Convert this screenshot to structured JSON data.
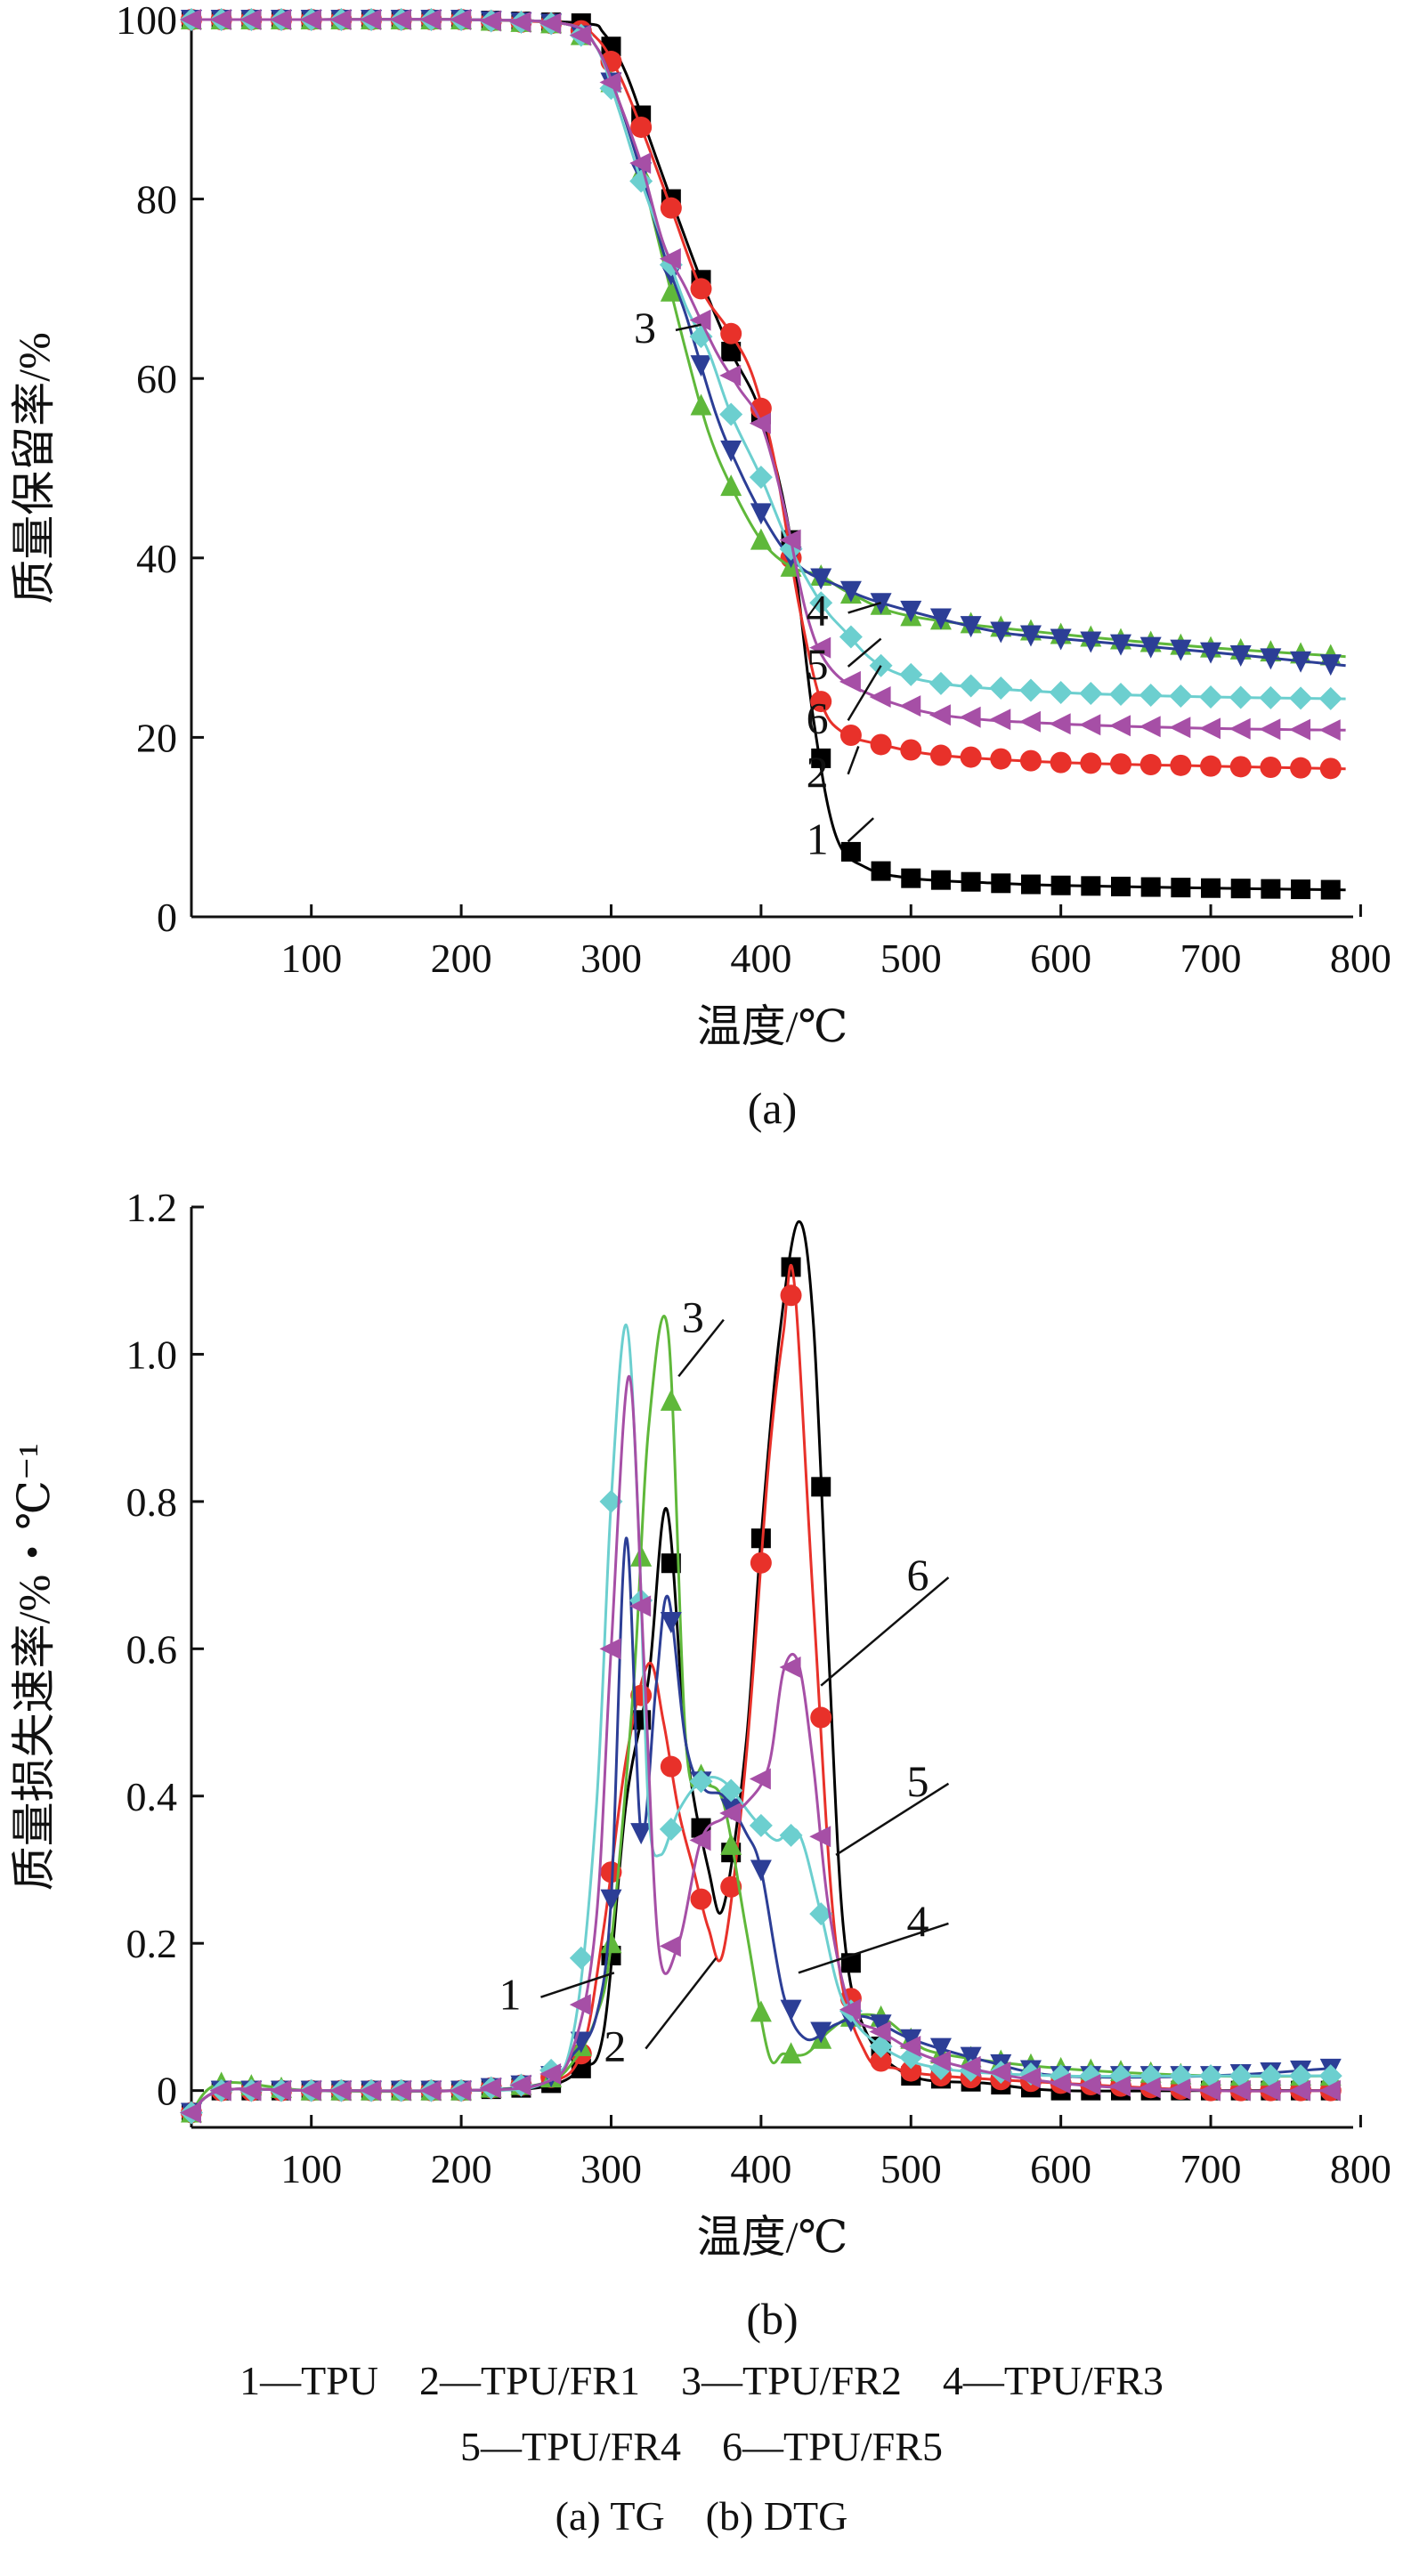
{
  "chart_data": [
    {
      "type": "line",
      "panel_label": "(a)",
      "ylabel": "质量保留率/%",
      "xlabel": "温度/℃",
      "xlim": [
        20,
        795
      ],
      "ylim": [
        0,
        100
      ],
      "xticks": [
        100,
        200,
        300,
        400,
        500,
        600,
        700,
        800
      ],
      "yticks": [
        0,
        20,
        40,
        60,
        80,
        100
      ],
      "series": [
        {
          "name": "1",
          "color": "#000000",
          "marker": "square",
          "x": [
            20,
            100,
            200,
            280,
            295,
            310,
            325,
            340,
            360,
            380,
            400,
            420,
            435,
            450,
            470,
            500,
            550,
            600,
            700,
            790
          ],
          "y": [
            100,
            100,
            100,
            99.6,
            98.5,
            94,
            87,
            80,
            71,
            63,
            56,
            42,
            22,
            9,
            5.5,
            4.3,
            3.8,
            3.5,
            3.2,
            3
          ]
        },
        {
          "name": "2",
          "color": "#e8312a",
          "marker": "circle",
          "x": [
            20,
            100,
            200,
            270,
            290,
            305,
            320,
            340,
            360,
            380,
            395,
            410,
            425,
            440,
            455,
            480,
            520,
            600,
            700,
            790
          ],
          "y": [
            100,
            100,
            100,
            99.5,
            98,
            94,
            88,
            79,
            70,
            65,
            60,
            50,
            35,
            24,
            20.5,
            19.2,
            18,
            17.2,
            16.8,
            16.5
          ]
        },
        {
          "name": "3",
          "color": "#5fb83a",
          "marker": "triangle-up",
          "x": [
            20,
            100,
            200,
            270,
            290,
            305,
            320,
            335,
            350,
            365,
            380,
            400,
            420,
            440,
            460,
            500,
            600,
            700,
            790
          ],
          "y": [
            100,
            100,
            100,
            99.5,
            97,
            91,
            83,
            73,
            63,
            54,
            48,
            42,
            39,
            38,
            36,
            33.5,
            31.5,
            30,
            29
          ]
        },
        {
          "name": "4",
          "color": "#2c3e96",
          "marker": "triangle-down",
          "x": [
            20,
            100,
            200,
            270,
            290,
            305,
            320,
            335,
            350,
            370,
            385,
            400,
            415,
            430,
            450,
            480,
            550,
            600,
            700,
            790
          ],
          "y": [
            100,
            100,
            100,
            99.5,
            97,
            91,
            83,
            74,
            67,
            56,
            50,
            45,
            41,
            38.5,
            37,
            35,
            32,
            31,
            29.5,
            28
          ]
        },
        {
          "name": "5",
          "color": "#6ccfcf",
          "marker": "diamond",
          "x": [
            20,
            100,
            200,
            270,
            290,
            305,
            320,
            335,
            350,
            365,
            380,
            400,
            420,
            440,
            455,
            480,
            520,
            600,
            700,
            790
          ],
          "y": [
            100,
            100,
            100,
            99.5,
            97,
            90,
            82,
            75,
            68,
            63,
            56,
            49,
            41,
            35,
            32,
            28,
            26,
            25,
            24.5,
            24.3
          ]
        },
        {
          "name": "6",
          "color": "#a64fa6",
          "marker": "triangle-left",
          "x": [
            20,
            100,
            200,
            270,
            290,
            305,
            320,
            335,
            350,
            370,
            385,
            400,
            415,
            430,
            445,
            470,
            520,
            600,
            700,
            790
          ],
          "y": [
            100,
            100,
            100,
            99.5,
            97,
            91,
            84,
            75,
            70,
            63,
            59,
            55,
            46,
            34,
            28,
            25,
            22.5,
            21.5,
            21,
            20.8
          ]
        }
      ],
      "annotations": [
        {
          "text": "3",
          "label_x": 330,
          "label_y": 64,
          "point_x": 360,
          "point_y": 66
        },
        {
          "text": "4",
          "label_x": 445,
          "label_y": 32.5,
          "point_x": 480,
          "point_y": 35
        },
        {
          "text": "5",
          "label_x": 445,
          "label_y": 26.5,
          "point_x": 480,
          "point_y": 31
        },
        {
          "text": "6",
          "label_x": 445,
          "label_y": 20.5,
          "point_x": 480,
          "point_y": 28
        },
        {
          "text": "2",
          "label_x": 445,
          "label_y": 14.5,
          "point_x": 465,
          "point_y": 19
        },
        {
          "text": "1",
          "label_x": 445,
          "label_y": 7,
          "point_x": 475,
          "point_y": 11
        }
      ]
    },
    {
      "type": "line",
      "panel_label": "(b)",
      "ylabel": "质量损失速率/%・℃⁻¹",
      "xlabel": "温度/℃",
      "xlim": [
        20,
        795
      ],
      "ylim": [
        -0.05,
        1.2
      ],
      "xticks": [
        100,
        200,
        300,
        400,
        500,
        600,
        700,
        800
      ],
      "yticks": [
        0,
        0.2,
        0.4,
        0.6,
        0.8,
        1.0,
        1.2
      ],
      "ytick_labels": [
        "0",
        "0.2",
        "0.4",
        "0.6",
        "0.8",
        "1.0",
        "1.2"
      ],
      "series": [
        {
          "name": "1",
          "color": "#000000",
          "marker": "square",
          "x": [
            20,
            40,
            100,
            200,
            255,
            280,
            295,
            310,
            325,
            337,
            350,
            365,
            375,
            390,
            400,
            412,
            425,
            435,
            445,
            455,
            470,
            500,
            550,
            600,
            700,
            780
          ],
          "y": [
            -0.03,
            0,
            0,
            0,
            0.005,
            0.03,
            0.08,
            0.39,
            0.56,
            0.79,
            0.47,
            0.3,
            0.25,
            0.47,
            0.75,
            1.02,
            1.18,
            1.04,
            0.6,
            0.22,
            0.08,
            0.02,
            0.01,
            0,
            0,
            0
          ]
        },
        {
          "name": "2",
          "color": "#e8312a",
          "marker": "circle",
          "x": [
            20,
            40,
            100,
            200,
            255,
            280,
            295,
            310,
            325,
            335,
            345,
            355,
            365,
            375,
            390,
            405,
            415,
            422,
            435,
            450,
            470,
            490,
            520,
            600,
            700,
            780
          ],
          "y": [
            -0.03,
            0,
            0,
            0,
            0.01,
            0.05,
            0.22,
            0.45,
            0.58,
            0.5,
            0.38,
            0.3,
            0.22,
            0.19,
            0.45,
            0.85,
            1.03,
            1.1,
            0.66,
            0.2,
            0.05,
            0.03,
            0.02,
            0.01,
            0,
            0
          ]
        },
        {
          "name": "3",
          "color": "#5fb83a",
          "marker": "triangle-up",
          "x": [
            20,
            40,
            100,
            200,
            255,
            275,
            290,
            300,
            315,
            325,
            338,
            350,
            362,
            375,
            390,
            405,
            415,
            430,
            445,
            460,
            480,
            500,
            520,
            600,
            700,
            780
          ],
          "y": [
            -0.03,
            0.01,
            0,
            0,
            0.01,
            0.04,
            0.1,
            0.2,
            0.55,
            0.9,
            1.03,
            0.47,
            0.42,
            0.39,
            0.22,
            0.05,
            0.05,
            0.05,
            0.08,
            0.1,
            0.1,
            0.07,
            0.05,
            0.03,
            0.02,
            0.02
          ]
        },
        {
          "name": "4",
          "color": "#2c3e96",
          "marker": "triangle-down",
          "x": [
            20,
            40,
            100,
            200,
            255,
            275,
            290,
            300,
            310,
            320,
            330,
            338,
            350,
            362,
            375,
            390,
            400,
            415,
            430,
            450,
            470,
            500,
            550,
            600,
            700,
            780
          ],
          "y": [
            -0.03,
            0,
            0,
            0,
            0.01,
            0.05,
            0.1,
            0.26,
            0.75,
            0.35,
            0.55,
            0.67,
            0.47,
            0.41,
            0.4,
            0.35,
            0.3,
            0.13,
            0.07,
            0.09,
            0.1,
            0.07,
            0.04,
            0.02,
            0.02,
            0.03
          ]
        },
        {
          "name": "5",
          "color": "#6ccfcf",
          "marker": "diamond",
          "x": [
            20,
            40,
            100,
            200,
            255,
            275,
            290,
            300,
            310,
            318,
            325,
            333,
            345,
            360,
            375,
            395,
            410,
            425,
            440,
            455,
            480,
            520,
            600,
            700,
            780
          ],
          "y": [
            -0.03,
            0,
            0,
            0,
            0.01,
            0.08,
            0.38,
            0.8,
            1.04,
            0.78,
            0.38,
            0.32,
            0.38,
            0.42,
            0.42,
            0.37,
            0.34,
            0.35,
            0.24,
            0.12,
            0.06,
            0.03,
            0.02,
            0.02,
            0.02
          ]
        },
        {
          "name": "6",
          "color": "#a64fa6",
          "marker": "triangle-left",
          "x": [
            20,
            40,
            100,
            200,
            255,
            275,
            290,
            300,
            312,
            322,
            332,
            345,
            360,
            375,
            390,
            405,
            415,
            425,
            435,
            445,
            460,
            480,
            520,
            600,
            700,
            780
          ],
          "y": [
            -0.03,
            0,
            0,
            0,
            0.01,
            0.06,
            0.23,
            0.6,
            0.97,
            0.58,
            0.19,
            0.2,
            0.34,
            0.37,
            0.39,
            0.44,
            0.57,
            0.58,
            0.44,
            0.25,
            0.11,
            0.08,
            0.04,
            0.01,
            0,
            0
          ]
        }
      ],
      "annotations": [
        {
          "text": "3",
          "label_x": 362,
          "label_y": 1.03,
          "point_x": 345,
          "point_y": 0.97
        },
        {
          "text": "6",
          "label_x": 512,
          "label_y": 0.68,
          "point_x": 440,
          "point_y": 0.55
        },
        {
          "text": "5",
          "label_x": 512,
          "label_y": 0.4,
          "point_x": 450,
          "point_y": 0.32
        },
        {
          "text": "4",
          "label_x": 512,
          "label_y": 0.21,
          "point_x": 425,
          "point_y": 0.16
        },
        {
          "text": "1",
          "label_x": 240,
          "label_y": 0.11,
          "point_x": 302,
          "point_y": 0.16
        },
        {
          "text": "2",
          "label_x": 310,
          "label_y": 0.04,
          "point_x": 370,
          "point_y": 0.18
        }
      ]
    }
  ],
  "legend": {
    "line1": "1—TPU    2—TPU/FR1    3—TPU/FR2    4—TPU/FR3",
    "line2": "5—TPU/FR4    6—TPU/FR5",
    "caption": "(a) TG    (b) DTG"
  }
}
